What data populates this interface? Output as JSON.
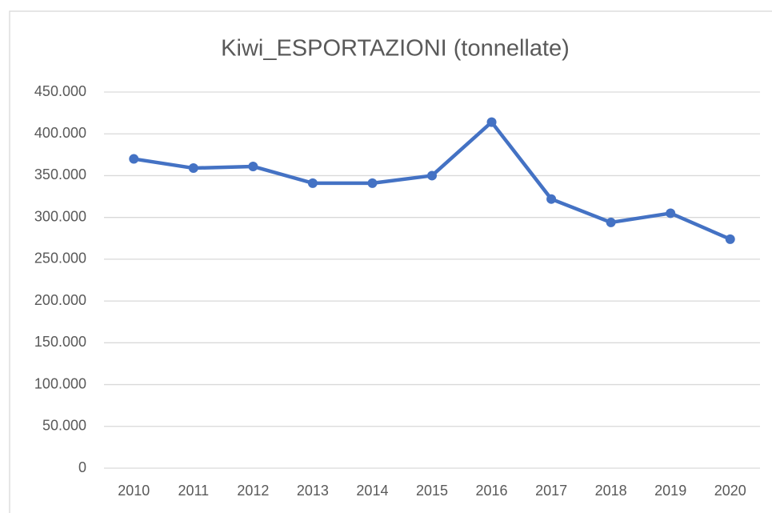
{
  "chart_data": {
    "type": "line",
    "title": "Kiwi_ESPORTAZIONI (tonnellate)",
    "categories": [
      "2010",
      "2011",
      "2012",
      "2013",
      "2014",
      "2015",
      "2016",
      "2017",
      "2018",
      "2019",
      "2020"
    ],
    "values": [
      370000,
      359000,
      361000,
      341000,
      341000,
      350000,
      414000,
      322000,
      294000,
      305000,
      274000
    ],
    "color": "#4472c4",
    "ylim": [
      0,
      450000
    ],
    "yticks": [
      0,
      {
        "value": 50000,
        "label": "50.000"
      },
      {
        "value": 100000,
        "label": "100.000"
      },
      {
        "value": 150000,
        "label": "150.000"
      },
      {
        "value": 200000,
        "label": "200.000"
      },
      {
        "value": 250000,
        "label": "250.000"
      },
      {
        "value": 300000,
        "label": "300.000"
      },
      {
        "value": 350000,
        "label": "350.000"
      },
      {
        "value": 400000,
        "label": "400.000"
      },
      {
        "value": 450000,
        "label": "450.000"
      }
    ],
    "grid": true
  }
}
